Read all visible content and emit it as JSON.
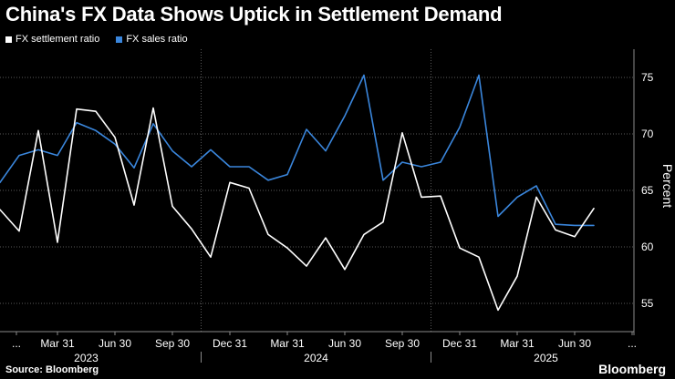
{
  "title": "China's FX Data Shows Uptick in Settlement Demand",
  "source": "Source: Bloomberg",
  "brand": "Bloomberg",
  "colors": {
    "settlement": "#ffffff",
    "sales": "#3a86dc",
    "grid": "#5a5a5a",
    "background": "#000000"
  },
  "chart_data": {
    "type": "line",
    "title": "China's FX Data Shows Uptick in Settlement Demand",
    "xlabel": "",
    "ylabel": "Percent",
    "ylim": [
      52.5,
      77.5
    ],
    "yticks": [
      55,
      60,
      65,
      70,
      75
    ],
    "grid": true,
    "legend_position": "top-left",
    "x": [
      "2022-12",
      "2023-01",
      "2023-02",
      "2023-03",
      "2023-04",
      "2023-05",
      "2023-06",
      "2023-07",
      "2023-08",
      "2023-09",
      "2023-10",
      "2023-11",
      "2023-12",
      "2024-01",
      "2024-02",
      "2024-03",
      "2024-04",
      "2024-05",
      "2024-06",
      "2024-07",
      "2024-08",
      "2024-09",
      "2024-10",
      "2024-11",
      "2024-12",
      "2025-01",
      "2025-02",
      "2025-03",
      "2025-04",
      "2025-05",
      "2025-06",
      "2025-07"
    ],
    "x_tick_labels": [
      "...",
      "Mar 31",
      "Jun 30",
      "Sep 30",
      "Dec 31",
      "Mar 31",
      "Jun 30",
      "Sep 30",
      "Dec 31",
      "Mar 31",
      "Jun 30",
      "..."
    ],
    "x_tick_index": [
      0,
      3,
      6,
      9,
      12,
      15,
      18,
      21,
      24,
      27,
      30,
      33
    ],
    "year_labels": [
      "2023",
      "2024",
      "2025"
    ],
    "year_label_index": [
      4.5,
      16.5,
      28.5
    ],
    "year_separator_index": [
      -0.5,
      10.5,
      22.5,
      34.5
    ],
    "series": [
      {
        "name": "FX settlement ratio",
        "color": "#ffffff",
        "values": [
          63.3,
          61.4,
          70.3,
          60.4,
          72.2,
          72.0,
          69.7,
          63.7,
          72.3,
          63.6,
          61.6,
          59.1,
          65.7,
          65.2,
          61.1,
          59.9,
          58.3,
          60.8,
          58.0,
          61.1,
          62.2,
          70.1,
          64.4,
          64.5,
          59.9,
          59.1,
          54.4,
          57.4,
          64.4,
          61.5,
          60.9,
          63.4
        ]
      },
      {
        "name": "FX sales ratio",
        "color": "#3a86dc",
        "values": [
          65.7,
          68.1,
          68.6,
          68.1,
          71.0,
          70.3,
          69.1,
          67.0,
          70.9,
          68.5,
          67.1,
          68.6,
          67.1,
          67.1,
          65.9,
          66.4,
          70.4,
          68.5,
          71.6,
          75.2,
          65.9,
          67.5,
          67.1,
          67.5,
          70.6,
          75.2,
          62.7,
          64.4,
          65.4,
          62.0,
          61.9,
          61.9
        ]
      }
    ]
  }
}
